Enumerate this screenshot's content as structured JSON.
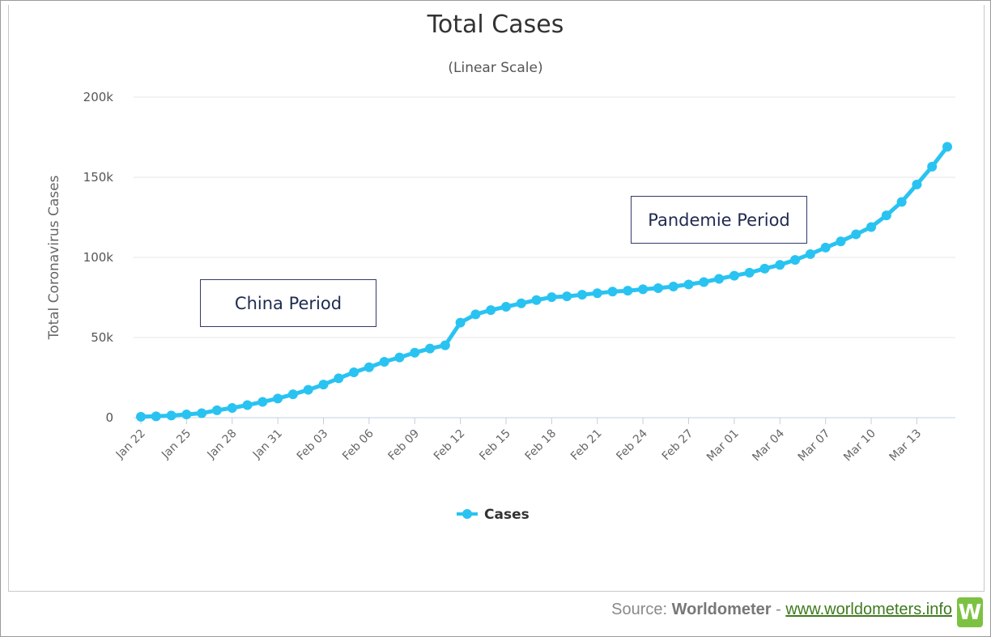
{
  "chart_data": {
    "type": "line",
    "title": "Total Cases",
    "subtitle": "(Linear Scale)",
    "ylabel": "Total Coronavirus Cases",
    "xlabel": "",
    "ylim": [
      0,
      200000
    ],
    "ytick_labels": [
      "0",
      "50k",
      "100k",
      "150k",
      "200k"
    ],
    "ytick_values": [
      0,
      50000,
      100000,
      150000,
      200000
    ],
    "xtick_labels": [
      "Jan 22",
      "Jan 25",
      "Jan 28",
      "Jan 31",
      "Feb 03",
      "Feb 06",
      "Feb 09",
      "Feb 12",
      "Feb 15",
      "Feb 18",
      "Feb 21",
      "Feb 24",
      "Feb 27",
      "Mar 01",
      "Mar 04",
      "Mar 07",
      "Mar 10",
      "Mar 13"
    ],
    "legend_position": "bottom-center",
    "grid": true,
    "line_color": "#29c3f1",
    "series": [
      {
        "name": "Cases",
        "x": [
          "Jan 22",
          "Jan 23",
          "Jan 24",
          "Jan 25",
          "Jan 26",
          "Jan 27",
          "Jan 28",
          "Jan 29",
          "Jan 30",
          "Jan 31",
          "Feb 01",
          "Feb 02",
          "Feb 03",
          "Feb 04",
          "Feb 05",
          "Feb 06",
          "Feb 07",
          "Feb 08",
          "Feb 09",
          "Feb 10",
          "Feb 11",
          "Feb 12",
          "Feb 13",
          "Feb 14",
          "Feb 15",
          "Feb 16",
          "Feb 17",
          "Feb 18",
          "Feb 19",
          "Feb 20",
          "Feb 21",
          "Feb 22",
          "Feb 23",
          "Feb 24",
          "Feb 25",
          "Feb 26",
          "Feb 27",
          "Feb 28",
          "Feb 29",
          "Mar 01",
          "Mar 02",
          "Mar 03",
          "Mar 04",
          "Mar 05",
          "Mar 06",
          "Mar 07",
          "Mar 08",
          "Mar 09",
          "Mar 10",
          "Mar 11",
          "Mar 12",
          "Mar 13",
          "Mar 14",
          "Mar 15"
        ],
        "values": [
          580,
          845,
          1317,
          2015,
          2800,
          4581,
          6058,
          7813,
          9823,
          11950,
          14553,
          17391,
          20630,
          24545,
          28266,
          31439,
          34876,
          37552,
          40553,
          43099,
          45134,
          59287,
          64438,
          67100,
          69197,
          71329,
          73332,
          75184,
          75700,
          76677,
          77673,
          78651,
          79205,
          80087,
          80828,
          81820,
          83112,
          84615,
          86604,
          88585,
          90443,
          93016,
          95314,
          98425,
          102050,
          106099,
          109991,
          114381,
          118948,
          126214,
          134576,
          145483,
          156653,
          169000
        ]
      }
    ]
  },
  "annotations": {
    "china_period": "China Period",
    "pandemie_period": "Pandemie Period"
  },
  "footer": {
    "source_prefix": "Source: ",
    "source_name": "Worldometer",
    "separator": " - ",
    "url": "www.worldometers.info",
    "logo_letter": "W"
  }
}
